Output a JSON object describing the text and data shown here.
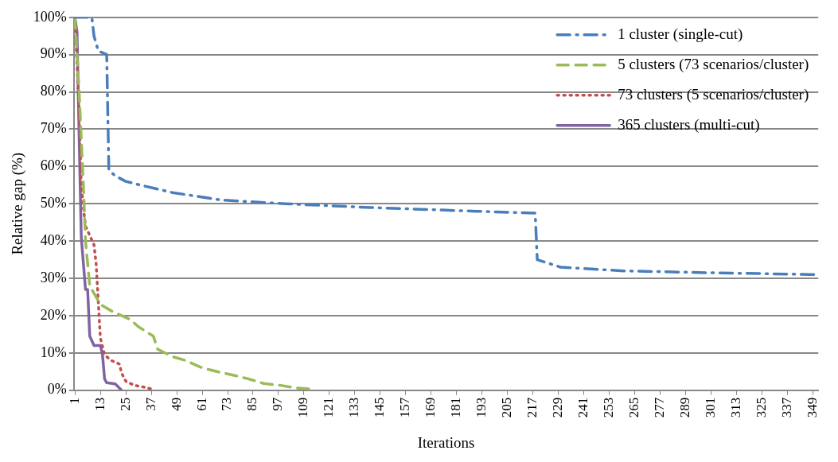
{
  "chart_data": {
    "type": "line",
    "xlabel": "Iterations",
    "ylabel": "Relative gap (%)",
    "xlim": [
      0.5,
      351.5
    ],
    "xticks": [
      1,
      13,
      25,
      37,
      49,
      61,
      73,
      85,
      97,
      109,
      121,
      133,
      145,
      157,
      169,
      181,
      193,
      205,
      217,
      229,
      241,
      253,
      265,
      277,
      289,
      301,
      313,
      325,
      337,
      349
    ],
    "ylim": [
      0,
      100
    ],
    "yticks": [
      {
        "value": 0,
        "label": "0%"
      },
      {
        "value": 10,
        "label": "10%"
      },
      {
        "value": 20,
        "label": "20%"
      },
      {
        "value": 30,
        "label": "30%"
      },
      {
        "value": 40,
        "label": "40%"
      },
      {
        "value": 50,
        "label": "50%"
      },
      {
        "value": 60,
        "label": "60%"
      },
      {
        "value": 70,
        "label": "70%"
      },
      {
        "value": 80,
        "label": "80%"
      },
      {
        "value": 90,
        "label": "90%"
      },
      {
        "value": 100,
        "label": "100%"
      }
    ],
    "grid": "y",
    "legend": "top right",
    "marker": "none",
    "series": [
      {
        "name": "1 cluster (single-cut)",
        "color": "#4a7ebb",
        "line_style": "dashdot",
        "x": [
          1,
          9,
          10,
          12,
          16,
          17,
          20,
          25,
          32,
          47,
          70,
          100,
          140,
          190,
          218,
          219,
          230,
          260,
          300,
          351
        ],
        "values": [
          100,
          100,
          95,
          91,
          90,
          59,
          57.5,
          56,
          55,
          53,
          51,
          50,
          49,
          48,
          47.5,
          35,
          33,
          32,
          31.5,
          31
        ]
      },
      {
        "name": "5 clusters (73 scenarios/cluster)",
        "color": "#9bbb59",
        "line_style": "dashed",
        "x": [
          1,
          3,
          5,
          6,
          8,
          13,
          19,
          27,
          31,
          38,
          40,
          47,
          53,
          61,
          68,
          76,
          83,
          90,
          98,
          105,
          113
        ],
        "values": [
          100,
          80,
          55,
          40,
          28,
          23,
          21,
          19,
          17,
          14.5,
          11,
          9,
          8,
          6,
          5,
          4,
          3,
          1.8,
          1.3,
          0.6,
          0.3
        ]
      },
      {
        "name": "73 clusters (5 scenarios/cluster)",
        "color": "#c0504d",
        "line_style": "dotted",
        "x": [
          1,
          3,
          4,
          5,
          6,
          8,
          10,
          11,
          12,
          13,
          15,
          18,
          22,
          23,
          25,
          29,
          33,
          38
        ],
        "values": [
          100,
          75,
          55,
          49,
          44,
          41.5,
          39,
          34,
          24,
          14,
          9.5,
          8,
          7,
          4.6,
          2.4,
          1.3,
          0.9,
          0.2
        ]
      },
      {
        "name": "365 clusters (multi-cut)",
        "color": "#8064a2",
        "line_style": "solid",
        "x": [
          1,
          2,
          3,
          4,
          6,
          7,
          8,
          10,
          13,
          14,
          15,
          16,
          20,
          23
        ],
        "values": [
          100,
          96,
          68,
          41,
          27,
          27,
          14.5,
          12,
          12,
          9.5,
          3,
          2,
          1.7,
          0
        ]
      }
    ]
  }
}
